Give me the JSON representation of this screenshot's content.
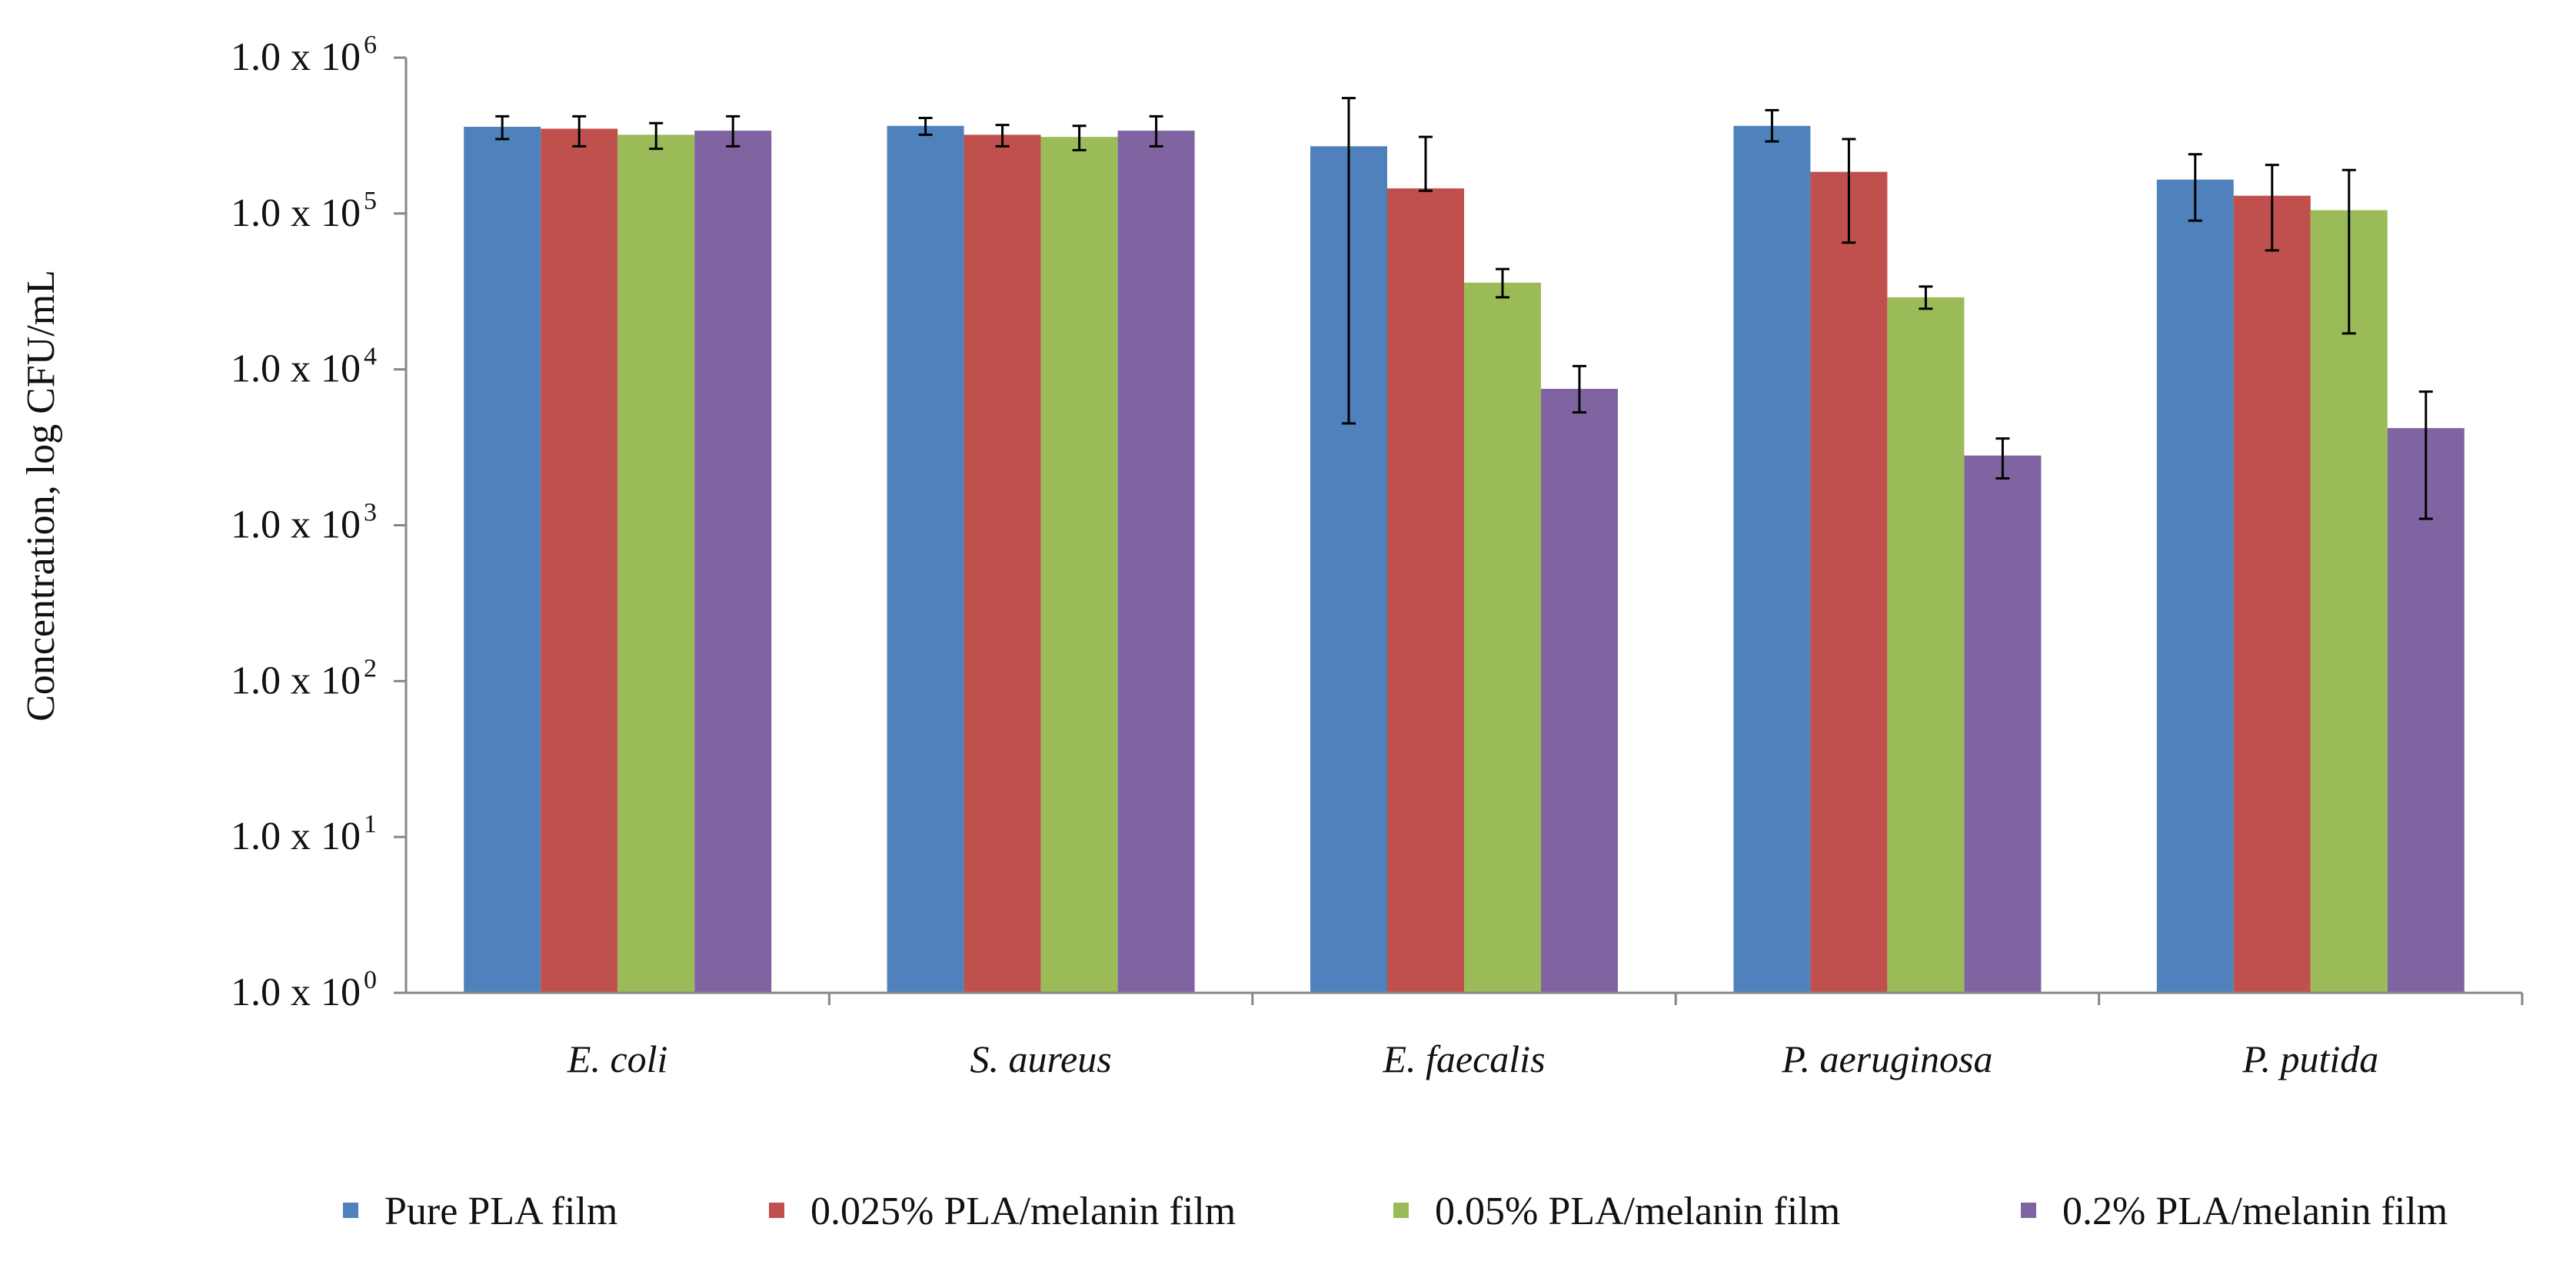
{
  "chart_data": {
    "type": "bar",
    "scale": "log",
    "title": "",
    "xlabel": "",
    "ylabel": "Concentration, log CFU/mL",
    "ylim": [
      1,
      1000000
    ],
    "grid": false,
    "legend_position": "bottom",
    "y_ticks": [
      {
        "base": "1.0 x 10",
        "exp": "0",
        "value": 1
      },
      {
        "base": "1.0 x 10",
        "exp": "1",
        "value": 10
      },
      {
        "base": "1.0 x 10",
        "exp": "2",
        "value": 100
      },
      {
        "base": "1.0 x 10",
        "exp": "3",
        "value": 1000
      },
      {
        "base": "1.0 x 10",
        "exp": "4",
        "value": 10000
      },
      {
        "base": "1.0 x 10",
        "exp": "5",
        "value": 100000
      },
      {
        "base": "1.0 x 10",
        "exp": "6",
        "value": 1000000
      }
    ],
    "categories": [
      "E. coli",
      "S. aureus",
      "E. faecalis",
      "P. aeruginosa",
      "P. putida"
    ],
    "series": [
      {
        "name": "Pure PLA film",
        "color": "#4F81BD",
        "values": [
          360000,
          365000,
          270000,
          365000,
          165000
        ],
        "error_low": [
          300000,
          320000,
          4500,
          290000,
          90000
        ],
        "error_high": [
          420000,
          410000,
          550000,
          460000,
          240000
        ]
      },
      {
        "name": "0.025% PLA/melanin film",
        "color": "#C0504D",
        "values": [
          350000,
          320000,
          145000,
          185000,
          130000
        ],
        "error_low": [
          270000,
          270000,
          140000,
          65000,
          58000
        ],
        "error_high": [
          420000,
          370000,
          310000,
          300000,
          205000
        ]
      },
      {
        "name": "0.05% PLA/melanin film",
        "color": "#9BBB59",
        "values": [
          320000,
          310000,
          36000,
          29000,
          105000
        ],
        "error_low": [
          260000,
          255000,
          29000,
          24500,
          17000
        ],
        "error_high": [
          380000,
          365000,
          44000,
          34000,
          190000
        ]
      },
      {
        "name": "0.2% PLA/melanin film",
        "color": "#8064A2",
        "values": [
          340000,
          340000,
          7500,
          2800,
          4200
        ],
        "error_low": [
          270000,
          270000,
          5300,
          2000,
          1100
        ],
        "error_high": [
          420000,
          420000,
          10500,
          3600,
          7200
        ]
      }
    ]
  }
}
